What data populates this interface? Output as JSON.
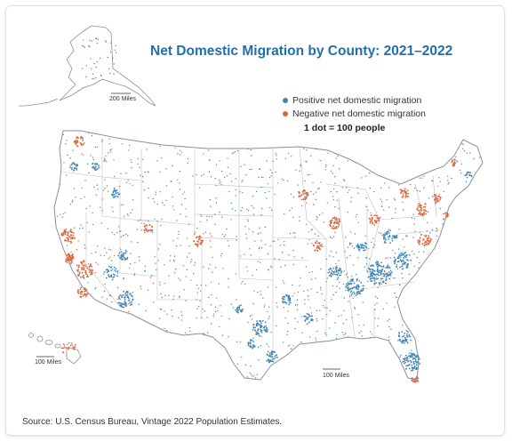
{
  "title": "Net Domestic Migration by County: 2021–2022",
  "legend": {
    "positive_label": "Positive net domestic migration",
    "negative_label": "Negative net domestic migration",
    "dot_scale": "1 dot = 100 people"
  },
  "scale_bars": {
    "alaska": "200 Miles",
    "hawaii": "100 Miles",
    "conus": "100 Miles"
  },
  "source": "Source: U.S. Census Bureau, Vintage 2022 Population Estimates.",
  "colors": {
    "positive": "#3f86b6",
    "negative": "#d9663e",
    "title": "#1f6fad",
    "border": "#9aa0a6"
  },
  "icons": {
    "positive_marker": "blue-dot-icon",
    "negative_marker": "orange-dot-icon"
  }
}
